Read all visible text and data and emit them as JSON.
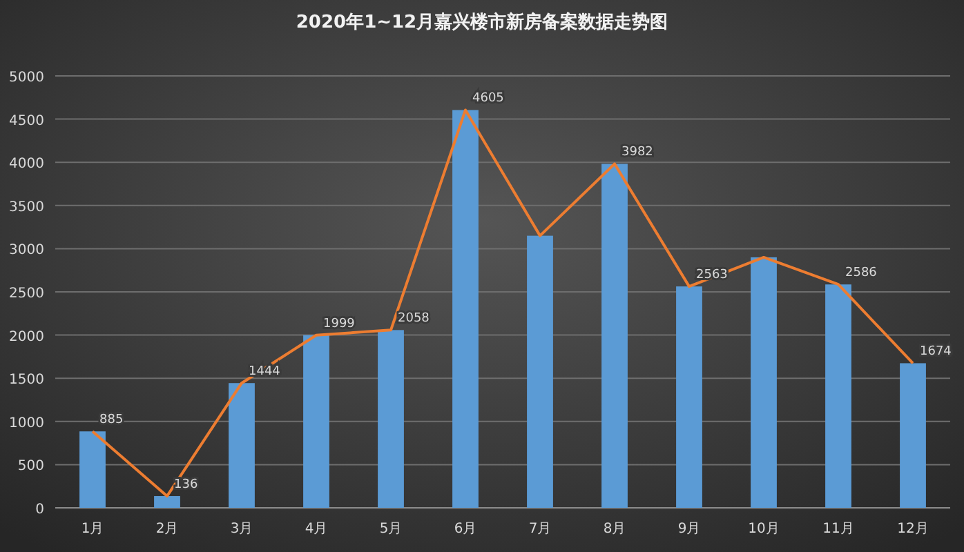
{
  "chart_data": {
    "type": "bar",
    "title": "2020年1~12月嘉兴楼市新房备案数据走势图",
    "categories": [
      "1月",
      "2月",
      "3月",
      "4月",
      "5月",
      "6月",
      "7月",
      "8月",
      "9月",
      "10月",
      "11月",
      "12月"
    ],
    "series": [
      {
        "color": "#5b9bd5",
        "values": [
          885,
          136,
          1444,
          1999,
          2058,
          4605,
          3150,
          3982,
          2563,
          2900,
          2586,
          1674
        ]
      },
      {
        "type": "line",
        "color": "#ed7d31",
        "values": [
          885,
          136,
          1444,
          1999,
          2058,
          4605,
          3150,
          3982,
          2563,
          2900,
          2586,
          1674
        ],
        "value_labels": [
          "885",
          "136",
          "1444",
          "1999",
          "2058",
          "4605",
          null,
          "3982",
          "2563",
          null,
          "2586",
          "1674"
        ]
      }
    ],
    "ylim": [
      0,
      5000
    ],
    "yticks": [
      0,
      500,
      1000,
      1500,
      2000,
      2500,
      3000,
      3500,
      4000,
      4500,
      5000
    ],
    "grid": "y",
    "marker": "none",
    "line_style": "solid"
  }
}
